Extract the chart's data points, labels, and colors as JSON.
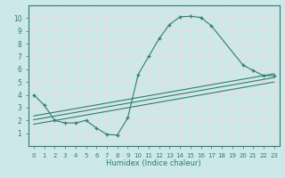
{
  "xlabel": "Humidex (Indice chaleur)",
  "bg_color": "#cce8e8",
  "grid_color": "#f0d8d8",
  "line_color": "#2e7d6e",
  "xlim": [
    -0.5,
    23.5
  ],
  "ylim": [
    0,
    11
  ],
  "xticks": [
    0,
    1,
    2,
    3,
    4,
    5,
    6,
    7,
    8,
    9,
    10,
    11,
    12,
    13,
    14,
    15,
    16,
    17,
    18,
    19,
    20,
    21,
    22,
    23
  ],
  "yticks": [
    1,
    2,
    3,
    4,
    5,
    6,
    7,
    8,
    9,
    10
  ],
  "curve1_x": [
    0,
    1,
    2,
    3,
    4,
    5,
    6,
    7,
    8,
    9,
    10,
    11,
    12,
    13,
    14,
    15,
    16,
    17,
    20,
    21,
    22,
    23
  ],
  "curve1_y": [
    4.0,
    3.2,
    2.0,
    1.8,
    1.8,
    2.0,
    1.4,
    0.9,
    0.85,
    2.2,
    5.6,
    7.0,
    8.4,
    9.5,
    10.1,
    10.15,
    10.05,
    9.4,
    6.35,
    5.9,
    5.5,
    5.5
  ],
  "line2_x": [
    0,
    23
  ],
  "line2_y": [
    2.05,
    5.35
  ],
  "line3_x": [
    0,
    23
  ],
  "line3_y": [
    1.7,
    5.0
  ],
  "line4_x": [
    0,
    23
  ],
  "line4_y": [
    2.35,
    5.65
  ]
}
